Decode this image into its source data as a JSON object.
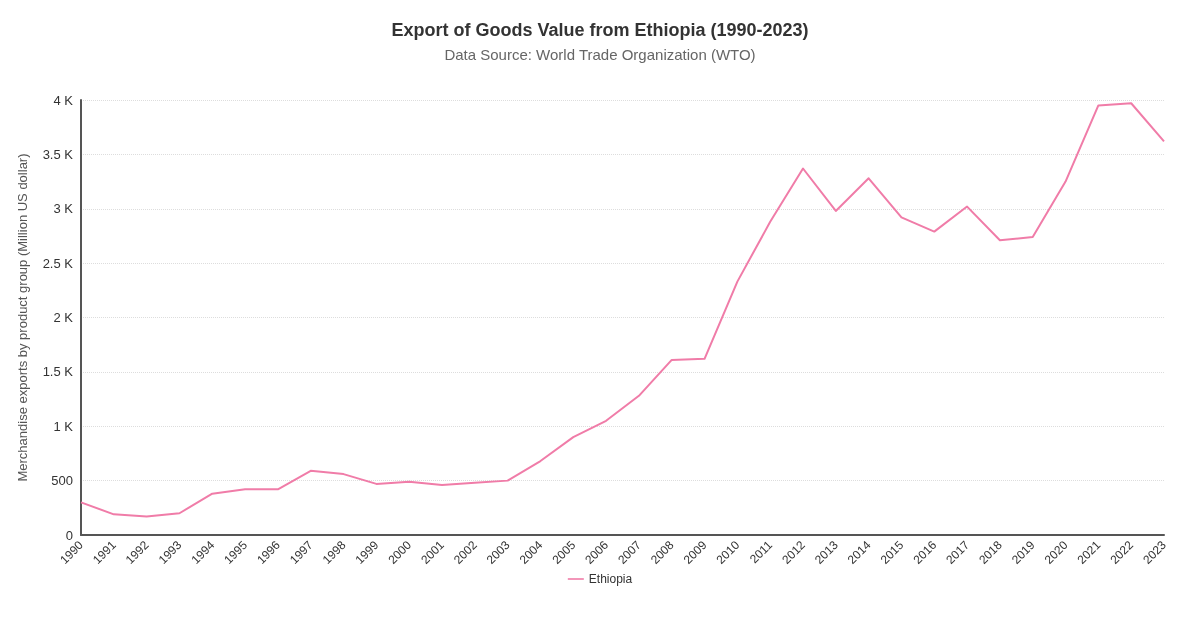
{
  "chart_data": {
    "type": "line",
    "title": "Export of Goods Value from Ethiopia (1990-2023)",
    "subtitle": "Data Source: World Trade Organization (WTO)",
    "ylabel": "Merchandise exports by product group (Million US dollar)",
    "categories": [
      "1990",
      "1991",
      "1992",
      "1993",
      "1994",
      "1995",
      "1996",
      "1997",
      "1998",
      "1999",
      "2000",
      "2001",
      "2002",
      "2003",
      "2004",
      "2005",
      "2006",
      "2007",
      "2008",
      "2009",
      "2010",
      "2011",
      "2012",
      "2013",
      "2014",
      "2015",
      "2016",
      "2017",
      "2018",
      "2019",
      "2020",
      "2021",
      "2022",
      "2023"
    ],
    "series": [
      {
        "name": "Ethiopia",
        "color": "#f07ca8",
        "values": [
          300,
          190,
          170,
          200,
          380,
          420,
          420,
          590,
          560,
          470,
          490,
          460,
          480,
          500,
          680,
          900,
          1050,
          1280,
          1610,
          1620,
          2330,
          2880,
          3370,
          2980,
          3280,
          2920,
          2790,
          3020,
          2710,
          2740,
          3250,
          3950,
          3970,
          3620
        ]
      }
    ],
    "ylim": [
      0,
      4000
    ],
    "yticks": [
      0,
      500,
      {
        "value": 1000,
        "label": "1 K"
      },
      {
        "value": 1500,
        "label": "1.5 K"
      },
      {
        "value": 2000,
        "label": "2 K"
      },
      {
        "value": 2500,
        "label": "2.5 K"
      },
      {
        "value": 3000,
        "label": "3 K"
      },
      {
        "value": 3500,
        "label": "3.5 K"
      },
      {
        "value": 4000,
        "label": "4 K"
      }
    ],
    "grid": "y",
    "legend": "bottom",
    "marker": "none",
    "line_style": "solid"
  }
}
